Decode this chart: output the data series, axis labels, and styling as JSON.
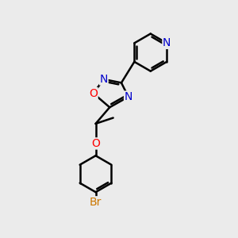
{
  "background_color": "#ebebeb",
  "bond_color": "#000000",
  "bond_width": 1.8,
  "atom_colors": {
    "N": "#0000cc",
    "O": "#ff0000",
    "Br": "#cc7700",
    "C": "#000000"
  },
  "font_size": 10,
  "fig_size": [
    3.0,
    3.0
  ],
  "dpi": 100
}
